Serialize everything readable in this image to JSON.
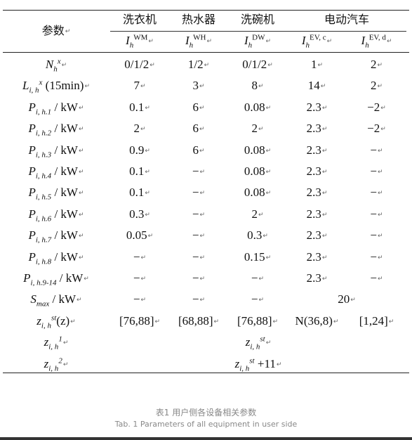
{
  "header": {
    "param_label": "参数",
    "washing_machine": "洗衣机",
    "water_heater": "热水器",
    "dishwasher": "洗碗机",
    "electric_vehicle": "电动汽车",
    "sup_wm": "WM",
    "sup_wh": "WH",
    "sup_dw": "DW",
    "sup_evc": "EV, c",
    "sup_evd": "EV, d",
    "sub_h": "h",
    "I": "I"
  },
  "rows": [
    {
      "label_base": "N",
      "label_sup": "x",
      "label_sub": "h",
      "label_tail": "",
      "values": [
        "0/1/2",
        "1/2",
        "0/1/2",
        "1",
        "2"
      ]
    },
    {
      "label_base": "L",
      "label_sup": "x",
      "label_sub": "i, h",
      "label_tail": " (15min)",
      "values": [
        "7",
        "3",
        "8",
        "14",
        "2"
      ]
    },
    {
      "label_base": "P",
      "label_sup": "",
      "label_sub": "i, h.1",
      "label_tail": " / kW",
      "values": [
        "0.1",
        "6",
        "0.08",
        "2.3",
        "−2"
      ]
    },
    {
      "label_base": "P",
      "label_sup": "",
      "label_sub": "i, h.2",
      "label_tail": " / kW",
      "values": [
        "2",
        "6",
        "2",
        "2.3",
        "−2"
      ]
    },
    {
      "label_base": "P",
      "label_sup": "",
      "label_sub": "i, h.3",
      "label_tail": " / kW",
      "values": [
        "0.9",
        "6",
        "0.08",
        "2.3",
        "−"
      ]
    },
    {
      "label_base": "P",
      "label_sup": "",
      "label_sub": "i, h.4",
      "label_tail": " / kW",
      "values": [
        "0.1",
        "−",
        "0.08",
        "2.3",
        "−"
      ]
    },
    {
      "label_base": "P",
      "label_sup": "",
      "label_sub": "i, h.5",
      "label_tail": " / kW",
      "values": [
        "0.1",
        "−",
        "0.08",
        "2.3",
        "−"
      ]
    },
    {
      "label_base": "P",
      "label_sup": "",
      "label_sub": "i, h.6",
      "label_tail": " / kW",
      "values": [
        "0.3",
        "−",
        "2",
        "2.3",
        "−"
      ]
    },
    {
      "label_base": "P",
      "label_sup": "",
      "label_sub": "i, h.7",
      "label_tail": " / kW",
      "values": [
        "0.05",
        "−",
        "0.3",
        "2.3",
        "−"
      ]
    },
    {
      "label_base": "P",
      "label_sup": "",
      "label_sub": "i, h.8",
      "label_tail": " / kW",
      "values": [
        "−",
        "−",
        "0.15",
        "2.3",
        "−"
      ]
    },
    {
      "label_base": "P",
      "label_sup": "",
      "label_sub": "i, h.9-14",
      "label_tail": " / kW",
      "values": [
        "−",
        "−",
        "−",
        "2.3",
        "−"
      ]
    }
  ],
  "smax": {
    "label_base": "S",
    "label_sub": "max",
    "label_tail": " / kW",
    "values": [
      "−",
      "−",
      "−"
    ],
    "ev_merged": "20"
  },
  "zst": {
    "label_base": "z",
    "label_sup": "st",
    "label_sub": "i, h",
    "label_tail": "(z)",
    "values": [
      "[76,88]",
      "[68,88]",
      "[76,88]",
      "N(36,8)",
      "[1,24]"
    ]
  },
  "z1": {
    "label_base": "z",
    "label_sup": "1",
    "label_sub": "i, h",
    "value_base": "z",
    "value_sup": "st",
    "value_sub": "i, h",
    "value_tail": ""
  },
  "z2": {
    "label_base": "z",
    "label_sup": "2",
    "label_sub": "i, h",
    "value_base": "z",
    "value_sup": "st",
    "value_sub": "i, h",
    "value_tail": " +11"
  },
  "caption": {
    "cn": "表1 用户侧各设备相关参数",
    "en": "Tab. 1 Parameters of all equipment in user side"
  }
}
